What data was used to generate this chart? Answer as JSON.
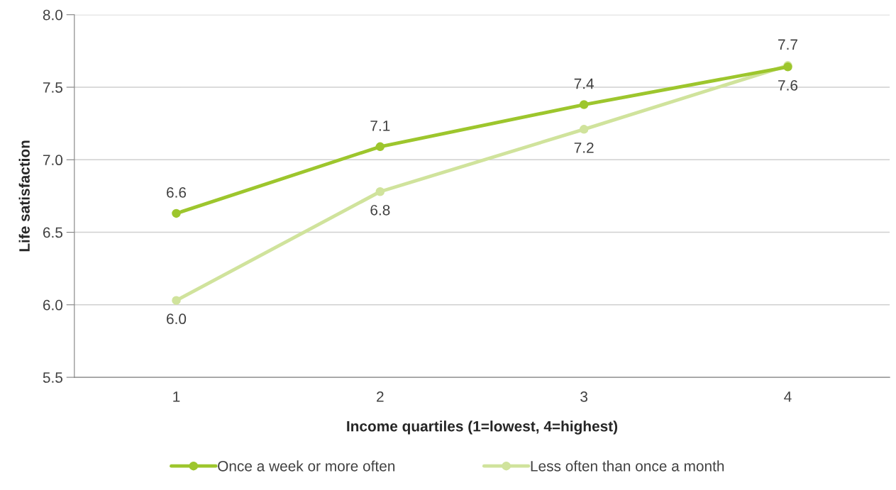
{
  "chart_data": {
    "type": "line",
    "xlabel": "Income quartiles (1=lowest, 4=highest)",
    "ylabel": "Life satisfaction",
    "categories": [
      "1",
      "2",
      "3",
      "4"
    ],
    "series": [
      {
        "name": "Once a week or more often",
        "color": "#9dc62d",
        "values": [
          6.63,
          7.09,
          7.38,
          7.64
        ],
        "value_labels": [
          "6.6",
          "7.1",
          "7.4",
          "7.6"
        ]
      },
      {
        "name": "Less often than once a month",
        "color": "#d0e39c",
        "values": [
          6.03,
          6.78,
          7.21,
          7.65
        ],
        "value_labels": [
          "6.0",
          "6.8",
          "7.2",
          "7.7"
        ]
      }
    ],
    "ylim": [
      5.5,
      8.0
    ],
    "yticks": [
      {
        "value": 5.5,
        "label": "5.5"
      },
      {
        "value": 6.0,
        "label": "6.0"
      },
      {
        "value": 6.5,
        "label": "6.5"
      },
      {
        "value": 7.0,
        "label": "7.0"
      },
      {
        "value": 7.5,
        "label": "7.5"
      },
      {
        "value": 8.0,
        "label": "8.0"
      }
    ],
    "grid": "y",
    "legend": "bottom",
    "marker": "circle",
    "line_style": "solid"
  }
}
